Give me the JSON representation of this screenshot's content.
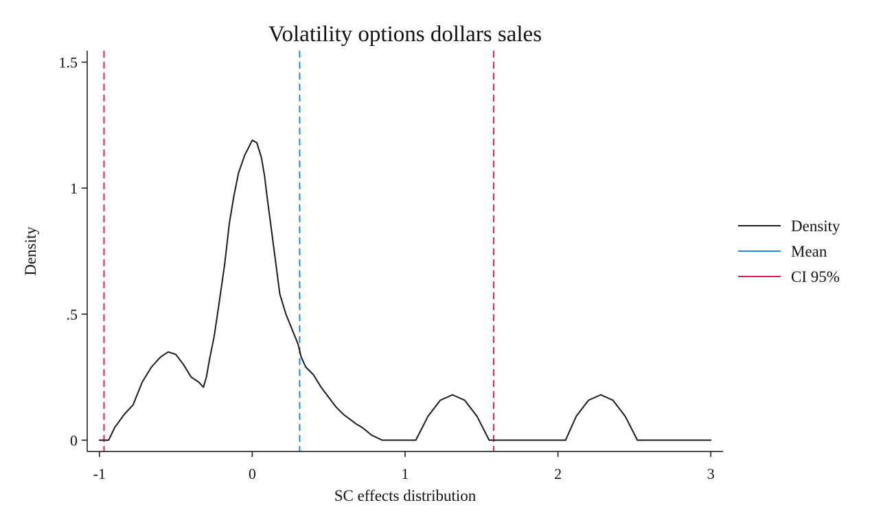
{
  "chart_data": {
    "type": "line",
    "title": "Volatility options dollars sales",
    "xlabel": "SC effects distribution",
    "ylabel": "Density",
    "xlim": [
      -1.08,
      3.08
    ],
    "ylim": [
      -0.045,
      1.545
    ],
    "x_ticks": [
      -1,
      0,
      1,
      2,
      3
    ],
    "x_tick_labels": [
      "-1",
      "0",
      "1",
      "2",
      "3"
    ],
    "y_ticks": [
      0,
      0.5,
      1,
      1.5
    ],
    "y_tick_labels": [
      "0",
      ".5",
      "1",
      "1.5"
    ],
    "grid": false,
    "legend_position": "right",
    "series": [
      {
        "name": "Density",
        "color": "#1a1a1a",
        "style": "solid",
        "x": [
          -1.0,
          -0.94,
          -0.9,
          -0.84,
          -0.78,
          -0.72,
          -0.66,
          -0.6,
          -0.55,
          -0.5,
          -0.45,
          -0.4,
          -0.35,
          -0.32,
          -0.3,
          -0.28,
          -0.25,
          -0.22,
          -0.18,
          -0.15,
          -0.12,
          -0.09,
          -0.05,
          0.0,
          0.03,
          0.06,
          0.08,
          0.1,
          0.12,
          0.15,
          0.18,
          0.22,
          0.26,
          0.3,
          0.32,
          0.35,
          0.4,
          0.45,
          0.5,
          0.55,
          0.6,
          0.65,
          0.68,
          0.72,
          0.78,
          0.85,
          0.91,
          0.94,
          1.0,
          1.07,
          1.15,
          1.23,
          1.31,
          1.39,
          1.47,
          1.55,
          1.63,
          1.7,
          1.8,
          1.9,
          2.05,
          2.12,
          2.2,
          2.28,
          2.36,
          2.44,
          2.52,
          2.6,
          2.67,
          2.8,
          3.0
        ],
        "values": [
          0.0,
          0.0,
          0.05,
          0.1,
          0.14,
          0.23,
          0.29,
          0.33,
          0.35,
          0.34,
          0.3,
          0.25,
          0.23,
          0.21,
          0.25,
          0.32,
          0.41,
          0.53,
          0.7,
          0.86,
          0.97,
          1.06,
          1.13,
          1.19,
          1.18,
          1.12,
          1.05,
          0.95,
          0.86,
          0.72,
          0.58,
          0.5,
          0.44,
          0.38,
          0.33,
          0.29,
          0.26,
          0.21,
          0.17,
          0.13,
          0.1,
          0.078,
          0.064,
          0.05,
          0.02,
          0.0,
          0.0,
          0.0,
          0.0,
          0.0,
          0.095,
          0.158,
          0.18,
          0.158,
          0.095,
          0.0,
          0.0,
          0.0,
          0.0,
          0.0,
          0.0,
          0.095,
          0.158,
          0.18,
          0.158,
          0.095,
          0.0,
          0.0,
          0.0,
          0.0,
          0.0
        ]
      },
      {
        "name": "Mean",
        "color": "#1e88e5",
        "style": "dashed",
        "vline_x": 0.31
      },
      {
        "name": "CI 95%",
        "color": "#d81b60",
        "style": "dashed",
        "vline_x": [
          -0.97,
          1.58
        ]
      }
    ]
  }
}
